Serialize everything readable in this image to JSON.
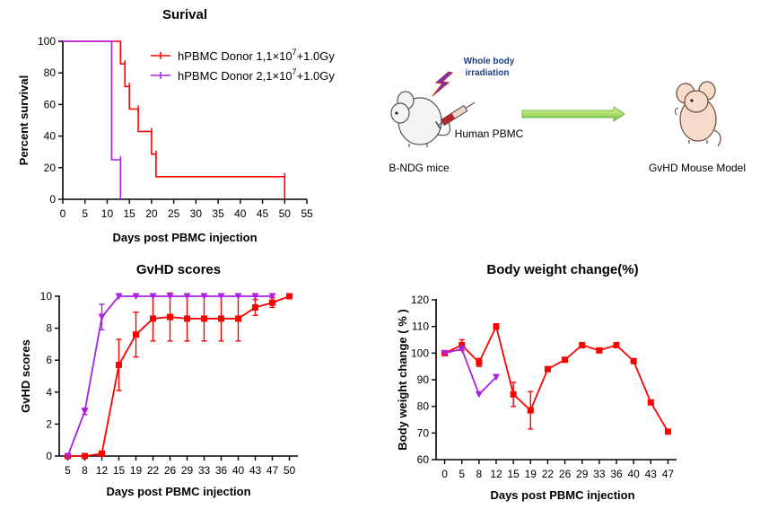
{
  "colors": {
    "donor1": "#ff0000",
    "donor2": "#aa22e6",
    "axis": "#000000"
  },
  "survival": {
    "title": "Surival",
    "xlabel": "Days post PBMC injection",
    "ylabel": "Percent survival",
    "legend": [
      {
        "pre": "hPBMC Donor 1,1×10",
        "sup": "7",
        "post": "+1.0Gy"
      },
      {
        "pre": "hPBMC Donor 2,1×10",
        "sup": "7",
        "post": "+1.0Gy"
      }
    ]
  },
  "gvhd": {
    "title": "GvHD scores",
    "xlabel": "Days post PBMC injection",
    "ylabel": "GvHD scores"
  },
  "weight": {
    "title": "Body weight change(%)",
    "xlabel": "Days post PBMC injection",
    "ylabel": "Body weight change ( % )"
  },
  "schematic": {
    "irradiation_label_1": "Whole body",
    "irradiation_label_2": "irradiation",
    "pbmc_label": "Human PBMC",
    "bndg_label": "B-NDG mice",
    "model_label": "GvHD Mouse Model",
    "icons": [
      "mouse-icon",
      "lightning-icon",
      "syringe-icon",
      "arrow-icon",
      "mouse-icon"
    ]
  },
  "chart_data": [
    {
      "type": "line",
      "title": "Surival",
      "xlabel": "Days post PBMC injection",
      "ylabel": "Percent survival",
      "xlim": [
        0,
        55
      ],
      "ylim": [
        0,
        100
      ],
      "xticks": [
        0,
        5,
        10,
        15,
        20,
        25,
        30,
        35,
        40,
        45,
        50,
        55
      ],
      "yticks": [
        0,
        20,
        40,
        60,
        80,
        100
      ],
      "step": true,
      "legend_position": "top-right",
      "series": [
        {
          "name": "hPBMC Donor 1,1×10^7+1.0Gy",
          "color": "#ff0000",
          "marker": "tick",
          "x": [
            0,
            13,
            14,
            15,
            17,
            20,
            21,
            50
          ],
          "y": [
            100,
            85.7,
            71.4,
            57.1,
            42.9,
            28.6,
            14.3,
            0
          ]
        },
        {
          "name": "hPBMC Donor 2,1×10^7+1.0Gy",
          "color": "#aa22e6",
          "marker": "tick",
          "x": [
            0,
            11,
            13
          ],
          "y": [
            100,
            25,
            0
          ]
        }
      ]
    },
    {
      "type": "line",
      "title": "GvHD scores",
      "xlabel": "Days post PBMC injection",
      "ylabel": "GvHD scores",
      "ylim": [
        0,
        10
      ],
      "yticks": [
        0,
        2,
        4,
        6,
        8,
        10
      ],
      "categories": [
        "5",
        "8",
        "12",
        "15",
        "19",
        "22",
        "26",
        "29",
        "33",
        "36",
        "40",
        "43",
        "47",
        "50"
      ],
      "series": [
        {
          "color": "#ff0000",
          "marker": "square",
          "values": [
            0,
            0,
            0.15,
            5.7,
            7.6,
            8.6,
            8.7,
            8.6,
            8.6,
            8.6,
            8.6,
            9.3,
            9.6,
            10
          ],
          "errors": [
            0,
            0,
            0,
            1.6,
            1.4,
            1.4,
            1.5,
            1.4,
            1.4,
            1.4,
            1.4,
            0.5,
            0.3,
            0
          ]
        },
        {
          "color": "#aa22e6",
          "marker": "triangle-down",
          "values": [
            0,
            2.8,
            8.7,
            10,
            10,
            10,
            10,
            10,
            10,
            10,
            10,
            10,
            10,
            null
          ],
          "errors": [
            0,
            0.2,
            0.8,
            0,
            0,
            0,
            0,
            0,
            0,
            0,
            0,
            0,
            0,
            null
          ]
        }
      ]
    },
    {
      "type": "line",
      "title": "Body weight change(%)",
      "xlabel": "Days post PBMC injection",
      "ylabel": "Body weight change ( % )",
      "ylim": [
        60,
        120
      ],
      "yticks": [
        60,
        70,
        80,
        90,
        100,
        110,
        120
      ],
      "categories": [
        "0",
        "5",
        "8",
        "12",
        "15",
        "19",
        "22",
        "26",
        "29",
        "33",
        "36",
        "40",
        "43",
        "47"
      ],
      "series": [
        {
          "color": "#ff0000",
          "marker": "square",
          "values": [
            100,
            103,
            96.5,
            110,
            84.5,
            78.5,
            94,
            97.5,
            103,
            101,
            103,
            97,
            81.5,
            70.5
          ],
          "errors": [
            0,
            2,
            1.5,
            1,
            4.5,
            7,
            0,
            0,
            0,
            0,
            0,
            0,
            0,
            0
          ]
        },
        {
          "color": "#aa22e6",
          "marker": "triangle-down",
          "values": [
            100,
            101.5,
            84.5,
            91,
            null,
            null,
            null,
            null,
            null,
            null,
            null,
            null,
            null,
            null
          ],
          "errors": [
            0,
            0,
            0,
            0,
            null,
            null,
            null,
            null,
            null,
            null,
            null,
            null,
            null,
            null
          ]
        }
      ]
    }
  ]
}
